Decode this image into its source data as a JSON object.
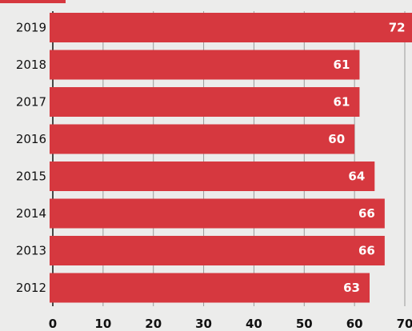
{
  "chart_data": {
    "type": "bar",
    "orientation": "horizontal",
    "categories": [
      "2019",
      "2018",
      "2017",
      "2016",
      "2015",
      "2014",
      "2013",
      "2012"
    ],
    "values": [
      72,
      61,
      61,
      60,
      64,
      66,
      66,
      63
    ],
    "data_labels": [
      "72",
      "61",
      "61",
      "60",
      "64",
      "66",
      "66",
      "63"
    ],
    "xticks": [
      "0",
      "10",
      "20",
      "30",
      "40",
      "50",
      "60",
      "70"
    ],
    "xlim": [
      0,
      70
    ],
    "title": "",
    "xlabel": "",
    "ylabel": "",
    "grid": true,
    "legend": "none",
    "colors": {
      "bar": "#d6383f",
      "background": "#ececeb",
      "grid": "#9a9a9a",
      "axis": "#111111",
      "bar_label": "#ffffff"
    }
  }
}
